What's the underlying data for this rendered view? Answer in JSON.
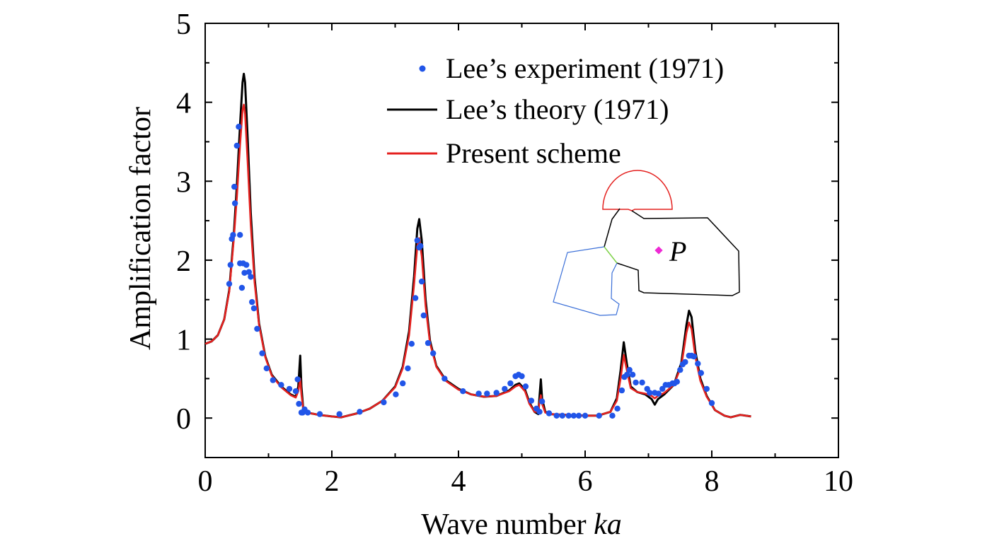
{
  "chart_data": {
    "type": "line",
    "xlabel": "Wave number",
    "xlabel_italic": "ka",
    "ylabel": "Amplification factor",
    "xlim": [
      0,
      10
    ],
    "ylim": [
      -0.5,
      5
    ],
    "xticks": [
      "0",
      "2",
      "4",
      "6",
      "8",
      "10"
    ],
    "yticks": [
      "0",
      "1",
      "2",
      "3",
      "4",
      "5"
    ],
    "grid": false,
    "legend_position": "top-right",
    "series": [
      {
        "name": "Lee’s experiment (1971)",
        "kind": "scatter",
        "color": "#2155e8",
        "points": [
          [
            0.38,
            1.7
          ],
          [
            0.4,
            1.94
          ],
          [
            0.42,
            2.27
          ],
          [
            0.44,
            2.32
          ],
          [
            0.46,
            2.93
          ],
          [
            0.47,
            2.72
          ],
          [
            0.5,
            3.45
          ],
          [
            0.53,
            3.69
          ],
          [
            0.55,
            2.32
          ],
          [
            0.55,
            1.96
          ],
          [
            0.58,
            1.65
          ],
          [
            0.6,
            1.96
          ],
          [
            0.62,
            1.84
          ],
          [
            0.65,
            1.94
          ],
          [
            0.69,
            1.85
          ],
          [
            0.72,
            1.79
          ],
          [
            0.74,
            1.47
          ],
          [
            0.77,
            1.39
          ],
          [
            0.82,
            1.13
          ],
          [
            0.9,
            0.82
          ],
          [
            0.97,
            0.63
          ],
          [
            1.07,
            0.48
          ],
          [
            1.2,
            0.42
          ],
          [
            1.33,
            0.37
          ],
          [
            1.43,
            0.34
          ],
          [
            1.46,
            0.49
          ],
          [
            1.48,
            0.18
          ],
          [
            1.52,
            0.07
          ],
          [
            1.54,
            0.07
          ],
          [
            1.57,
            0.11
          ],
          [
            1.62,
            0.07
          ],
          [
            1.81,
            0.05
          ],
          [
            2.12,
            0.05
          ],
          [
            2.44,
            0.08
          ],
          [
            2.82,
            0.2
          ],
          [
            3.01,
            0.3
          ],
          [
            3.12,
            0.44
          ],
          [
            3.2,
            0.63
          ],
          [
            3.26,
            0.94
          ],
          [
            3.32,
            1.52
          ],
          [
            3.35,
            2.25
          ],
          [
            3.38,
            2.16
          ],
          [
            3.4,
            2.18
          ],
          [
            3.42,
            1.73
          ],
          [
            3.45,
            1.3
          ],
          [
            3.52,
            0.95
          ],
          [
            3.6,
            0.82
          ],
          [
            3.78,
            0.5
          ],
          [
            4.07,
            0.34
          ],
          [
            4.32,
            0.31
          ],
          [
            4.45,
            0.31
          ],
          [
            4.6,
            0.32
          ],
          [
            4.73,
            0.37
          ],
          [
            4.82,
            0.44
          ],
          [
            4.9,
            0.53
          ],
          [
            4.95,
            0.55
          ],
          [
            5.0,
            0.53
          ],
          [
            5.06,
            0.4
          ],
          [
            5.15,
            0.22
          ],
          [
            5.23,
            0.12
          ],
          [
            5.28,
            0.08
          ],
          [
            5.32,
            0.21
          ],
          [
            5.43,
            0.06
          ],
          [
            5.55,
            0.03
          ],
          [
            5.64,
            0.03
          ],
          [
            5.74,
            0.03
          ],
          [
            5.82,
            0.03
          ],
          [
            5.9,
            0.03
          ],
          [
            6.0,
            0.03
          ],
          [
            6.22,
            0.03
          ],
          [
            6.43,
            0.03
          ],
          [
            6.51,
            0.12
          ],
          [
            6.58,
            0.35
          ],
          [
            6.62,
            0.52
          ],
          [
            6.66,
            0.55
          ],
          [
            6.7,
            0.61
          ],
          [
            6.75,
            0.55
          ],
          [
            6.8,
            0.45
          ],
          [
            6.9,
            0.45
          ],
          [
            6.98,
            0.37
          ],
          [
            7.02,
            0.32
          ],
          [
            7.1,
            0.32
          ],
          [
            7.16,
            0.31
          ],
          [
            7.22,
            0.37
          ],
          [
            7.27,
            0.42
          ],
          [
            7.32,
            0.42
          ],
          [
            7.38,
            0.44
          ],
          [
            7.41,
            0.44
          ],
          [
            7.45,
            0.46
          ],
          [
            7.5,
            0.61
          ],
          [
            7.54,
            0.68
          ],
          [
            7.58,
            0.71
          ],
          [
            7.64,
            0.79
          ],
          [
            7.68,
            0.79
          ],
          [
            7.72,
            0.78
          ],
          [
            7.78,
            0.69
          ],
          [
            7.83,
            0.57
          ],
          [
            7.92,
            0.37
          ],
          [
            8.0,
            0.19
          ]
        ]
      },
      {
        "name": "Lee’s theory (1971)",
        "kind": "line",
        "color": "#000000",
        "points": [
          [
            0.0,
            0.94
          ],
          [
            0.1,
            0.97
          ],
          [
            0.2,
            1.05
          ],
          [
            0.3,
            1.25
          ],
          [
            0.38,
            1.62
          ],
          [
            0.45,
            2.3
          ],
          [
            0.5,
            2.95
          ],
          [
            0.55,
            3.7
          ],
          [
            0.59,
            4.25
          ],
          [
            0.61,
            4.36
          ],
          [
            0.63,
            4.25
          ],
          [
            0.67,
            3.55
          ],
          [
            0.72,
            2.6
          ],
          [
            0.78,
            1.78
          ],
          [
            0.85,
            1.2
          ],
          [
            0.95,
            0.78
          ],
          [
            1.05,
            0.55
          ],
          [
            1.2,
            0.4
          ],
          [
            1.35,
            0.3
          ],
          [
            1.43,
            0.27
          ],
          [
            1.47,
            0.4
          ],
          [
            1.5,
            0.79
          ],
          [
            1.52,
            0.4
          ],
          [
            1.55,
            0.1
          ],
          [
            1.6,
            0.07
          ],
          [
            1.8,
            0.04
          ],
          [
            2.0,
            0.02
          ],
          [
            2.15,
            0.01
          ],
          [
            2.4,
            0.06
          ],
          [
            2.6,
            0.12
          ],
          [
            2.8,
            0.22
          ],
          [
            3.0,
            0.4
          ],
          [
            3.12,
            0.65
          ],
          [
            3.22,
            1.1
          ],
          [
            3.3,
            1.8
          ],
          [
            3.35,
            2.4
          ],
          [
            3.38,
            2.52
          ],
          [
            3.42,
            2.25
          ],
          [
            3.48,
            1.5
          ],
          [
            3.55,
            0.98
          ],
          [
            3.65,
            0.66
          ],
          [
            3.8,
            0.48
          ],
          [
            4.0,
            0.37
          ],
          [
            4.2,
            0.3
          ],
          [
            4.4,
            0.27
          ],
          [
            4.6,
            0.28
          ],
          [
            4.8,
            0.35
          ],
          [
            4.9,
            0.42
          ],
          [
            4.96,
            0.44
          ],
          [
            5.05,
            0.36
          ],
          [
            5.12,
            0.2
          ],
          [
            5.2,
            0.08
          ],
          [
            5.26,
            0.05
          ],
          [
            5.28,
            0.28
          ],
          [
            5.3,
            0.49
          ],
          [
            5.32,
            0.25
          ],
          [
            5.37,
            0.08
          ],
          [
            5.45,
            0.05
          ],
          [
            5.7,
            0.04
          ],
          [
            6.0,
            0.03
          ],
          [
            6.2,
            0.03
          ],
          [
            6.4,
            0.08
          ],
          [
            6.5,
            0.25
          ],
          [
            6.56,
            0.6
          ],
          [
            6.61,
            0.96
          ],
          [
            6.66,
            0.68
          ],
          [
            6.72,
            0.4
          ],
          [
            6.82,
            0.33
          ],
          [
            6.95,
            0.3
          ],
          [
            7.05,
            0.24
          ],
          [
            7.1,
            0.17
          ],
          [
            7.15,
            0.24
          ],
          [
            7.25,
            0.3
          ],
          [
            7.4,
            0.42
          ],
          [
            7.52,
            0.7
          ],
          [
            7.6,
            1.18
          ],
          [
            7.64,
            1.36
          ],
          [
            7.68,
            1.28
          ],
          [
            7.74,
            0.85
          ],
          [
            7.82,
            0.5
          ],
          [
            7.92,
            0.28
          ],
          [
            8.05,
            0.1
          ],
          [
            8.2,
            0.03
          ],
          [
            8.3,
            0.01
          ],
          [
            8.45,
            0.04
          ],
          [
            8.62,
            0.02
          ]
        ]
      },
      {
        "name": "Present scheme",
        "kind": "line",
        "color": "#e4211f",
        "points": [
          [
            0.0,
            0.94
          ],
          [
            0.1,
            0.97
          ],
          [
            0.2,
            1.05
          ],
          [
            0.3,
            1.25
          ],
          [
            0.38,
            1.6
          ],
          [
            0.45,
            2.25
          ],
          [
            0.5,
            2.8
          ],
          [
            0.55,
            3.45
          ],
          [
            0.59,
            3.9
          ],
          [
            0.61,
            3.97
          ],
          [
            0.63,
            3.85
          ],
          [
            0.67,
            3.25
          ],
          [
            0.72,
            2.45
          ],
          [
            0.78,
            1.72
          ],
          [
            0.85,
            1.18
          ],
          [
            0.95,
            0.77
          ],
          [
            1.05,
            0.54
          ],
          [
            1.2,
            0.39
          ],
          [
            1.35,
            0.29
          ],
          [
            1.43,
            0.26
          ],
          [
            1.47,
            0.34
          ],
          [
            1.5,
            0.5
          ],
          [
            1.52,
            0.3
          ],
          [
            1.55,
            0.1
          ],
          [
            1.6,
            0.07
          ],
          [
            1.8,
            0.04
          ],
          [
            2.0,
            0.02
          ],
          [
            2.15,
            0.01
          ],
          [
            2.4,
            0.06
          ],
          [
            2.6,
            0.12
          ],
          [
            2.8,
            0.22
          ],
          [
            3.0,
            0.39
          ],
          [
            3.12,
            0.63
          ],
          [
            3.22,
            1.05
          ],
          [
            3.3,
            1.7
          ],
          [
            3.35,
            2.18
          ],
          [
            3.38,
            2.28
          ],
          [
            3.42,
            2.05
          ],
          [
            3.48,
            1.42
          ],
          [
            3.55,
            0.95
          ],
          [
            3.65,
            0.65
          ],
          [
            3.8,
            0.47
          ],
          [
            4.0,
            0.36
          ],
          [
            4.2,
            0.3
          ],
          [
            4.4,
            0.27
          ],
          [
            4.6,
            0.28
          ],
          [
            4.8,
            0.34
          ],
          [
            4.9,
            0.4
          ],
          [
            4.96,
            0.42
          ],
          [
            5.05,
            0.34
          ],
          [
            5.12,
            0.18
          ],
          [
            5.2,
            0.08
          ],
          [
            5.26,
            0.08
          ],
          [
            5.28,
            0.2
          ],
          [
            5.3,
            0.29
          ],
          [
            5.32,
            0.18
          ],
          [
            5.37,
            0.07
          ],
          [
            5.45,
            0.05
          ],
          [
            5.7,
            0.04
          ],
          [
            6.0,
            0.03
          ],
          [
            6.2,
            0.03
          ],
          [
            6.4,
            0.08
          ],
          [
            6.5,
            0.22
          ],
          [
            6.56,
            0.5
          ],
          [
            6.61,
            0.8
          ],
          [
            6.66,
            0.6
          ],
          [
            6.72,
            0.38
          ],
          [
            6.82,
            0.33
          ],
          [
            6.95,
            0.31
          ],
          [
            7.05,
            0.28
          ],
          [
            7.1,
            0.25
          ],
          [
            7.15,
            0.28
          ],
          [
            7.25,
            0.32
          ],
          [
            7.4,
            0.42
          ],
          [
            7.52,
            0.66
          ],
          [
            7.6,
            1.08
          ],
          [
            7.64,
            1.21
          ],
          [
            7.68,
            1.13
          ],
          [
            7.74,
            0.78
          ],
          [
            7.82,
            0.47
          ],
          [
            7.92,
            0.27
          ],
          [
            8.05,
            0.1
          ],
          [
            8.2,
            0.03
          ],
          [
            8.3,
            0.01
          ],
          [
            8.45,
            0.04
          ],
          [
            8.62,
            0.02
          ]
        ]
      }
    ],
    "inset": {
      "label": "P",
      "marker_color": "#ee2ad4",
      "harbor_color": "#000000",
      "basin_color": "#e4211f",
      "channel_color": "#3a6fd8",
      "connector_color": "#7fd24a"
    }
  }
}
